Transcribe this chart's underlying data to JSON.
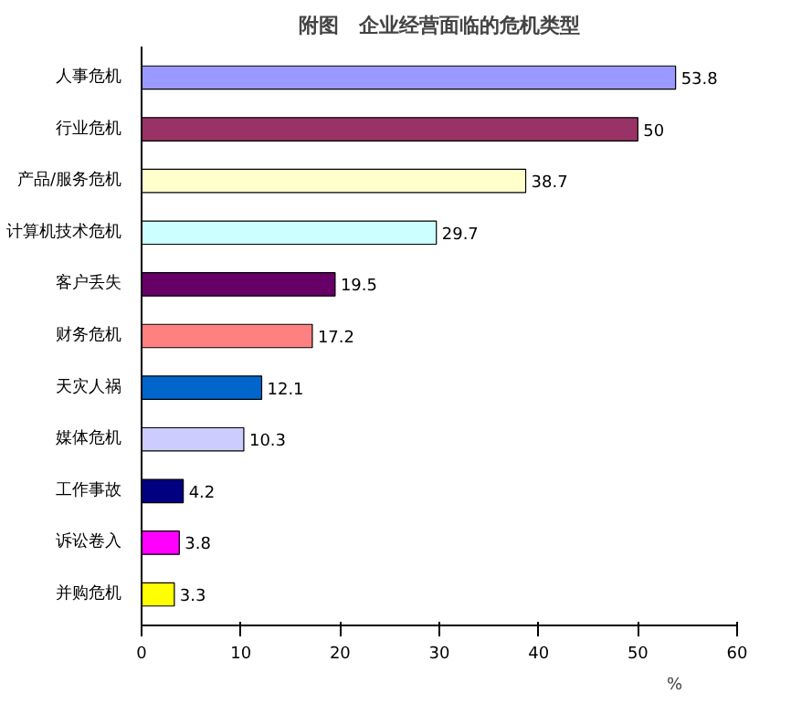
{
  "chart_data": {
    "type": "bar",
    "orientation": "horizontal",
    "title": "附图　企业经营面临的危机类型",
    "xlabel": "%",
    "categories": [
      "人事危机",
      "行业危机",
      "产品/服务危机",
      "计算机技术危机",
      "客户丢失",
      "财务危机",
      "天灾人祸",
      "媒体危机",
      "工作事故",
      "诉讼卷入",
      "并购危机"
    ],
    "values": [
      53.8,
      50,
      38.7,
      29.7,
      19.5,
      17.2,
      12.1,
      10.3,
      4.2,
      3.8,
      3.3
    ],
    "colors": [
      "#9999ff",
      "#993366",
      "#ffffcc",
      "#ccffff",
      "#660066",
      "#ff8080",
      "#0066cc",
      "#ccccff",
      "#000080",
      "#ff00ff",
      "#ffff00"
    ],
    "xlim": [
      0,
      60
    ],
    "xticks": [
      0,
      10,
      20,
      30,
      40,
      50,
      60
    ],
    "data_labels": true,
    "grid": false
  }
}
